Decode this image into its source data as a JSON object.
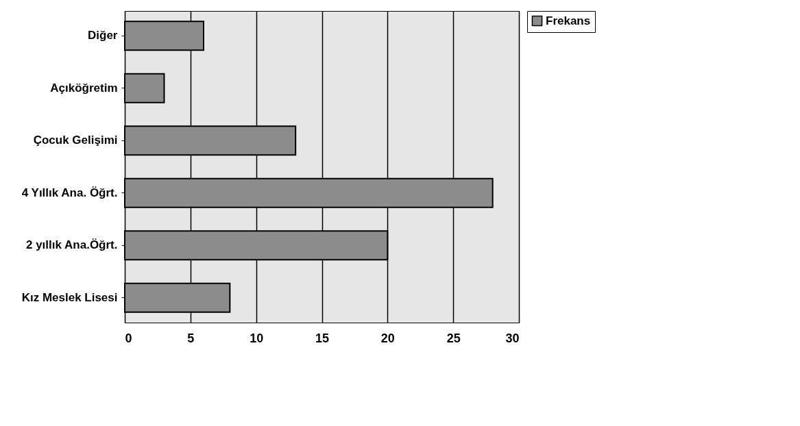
{
  "chart_data": {
    "type": "bar",
    "orientation": "horizontal",
    "categories": [
      "Diğer",
      "Açıköğretim",
      "Çocuk Gelişimi",
      "4 Yıllık Ana. Öğrt.",
      "2 yıllık Ana.Öğrt.",
      "Kız Meslek Lisesi"
    ],
    "series": [
      {
        "name": "Frekans",
        "color": "#8c8c8c",
        "values": [
          6,
          3,
          13,
          28,
          20,
          8
        ]
      }
    ],
    "xlim": [
      0,
      30
    ],
    "xticks": [
      0,
      5,
      10,
      15,
      20,
      25,
      30
    ],
    "grid": "x",
    "legend": "right"
  }
}
